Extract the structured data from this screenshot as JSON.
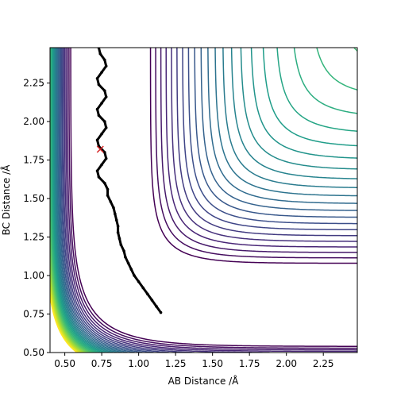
{
  "chart_data": {
    "type": "contour",
    "xlabel": "AB Distance /Å",
    "ylabel": "BC Distance /Å",
    "xlim": [
      0.4,
      2.48
    ],
    "ylim": [
      0.5,
      2.48
    ],
    "x_ticks": [
      0.5,
      0.75,
      1.0,
      1.25,
      1.5,
      1.75,
      2.0,
      2.25
    ],
    "x_tick_labels": [
      "0.50",
      "0.75",
      "1.00",
      "1.25",
      "1.50",
      "1.75",
      "2.00",
      "2.25"
    ],
    "y_ticks": [
      0.5,
      0.75,
      1.0,
      1.25,
      1.5,
      1.75,
      2.0,
      2.25
    ],
    "y_tick_labels": [
      "0.50",
      "0.75",
      "1.00",
      "1.25",
      "1.50",
      "1.75",
      "2.00",
      "2.25"
    ],
    "grid": false,
    "colormap": "viridis",
    "colormap_low": "#440154",
    "colormap_high": "#fde725",
    "trajectory": {
      "color": "#000000",
      "points": [
        [
          0.73,
          2.48
        ],
        [
          0.74,
          2.44
        ],
        [
          0.77,
          2.4
        ],
        [
          0.78,
          2.36
        ],
        [
          0.75,
          2.32
        ],
        [
          0.72,
          2.28
        ],
        [
          0.73,
          2.24
        ],
        [
          0.77,
          2.2
        ],
        [
          0.78,
          2.16
        ],
        [
          0.75,
          2.12
        ],
        [
          0.72,
          2.08
        ],
        [
          0.73,
          2.04
        ],
        [
          0.77,
          2.0
        ],
        [
          0.78,
          1.96
        ],
        [
          0.75,
          1.92
        ],
        [
          0.72,
          1.88
        ],
        [
          0.73,
          1.84
        ],
        [
          0.77,
          1.8
        ],
        [
          0.78,
          1.76
        ],
        [
          0.75,
          1.72
        ],
        [
          0.72,
          1.68
        ],
        [
          0.73,
          1.64
        ],
        [
          0.77,
          1.6
        ],
        [
          0.79,
          1.56
        ],
        [
          0.79,
          1.52
        ],
        [
          0.81,
          1.48
        ],
        [
          0.83,
          1.44
        ],
        [
          0.84,
          1.4
        ],
        [
          0.85,
          1.36
        ],
        [
          0.86,
          1.32
        ],
        [
          0.86,
          1.28
        ],
        [
          0.87,
          1.24
        ],
        [
          0.88,
          1.2
        ],
        [
          0.9,
          1.16
        ],
        [
          0.91,
          1.12
        ],
        [
          0.93,
          1.08
        ],
        [
          0.95,
          1.04
        ],
        [
          0.97,
          1.0
        ],
        [
          1.0,
          0.96
        ],
        [
          1.03,
          0.92
        ],
        [
          1.06,
          0.88
        ],
        [
          1.09,
          0.84
        ],
        [
          1.12,
          0.8
        ],
        [
          1.15,
          0.76
        ]
      ]
    },
    "marker": {
      "x": 0.74,
      "y": 1.82,
      "symbol": "x",
      "color": "#d62728"
    }
  }
}
